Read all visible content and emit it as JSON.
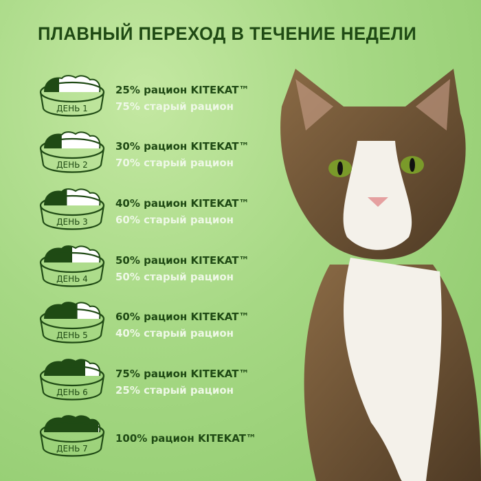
{
  "title": "ПЛАВНЫЙ ПЕРЕХОД В ТЕЧЕНИЕ НЕДЕЛИ",
  "colors": {
    "dark_green": "#1f4a14",
    "light_text": "#eef8e6",
    "background": "#a6d884"
  },
  "steps": [
    {
      "day": "ДЕНЬ 1",
      "new_share": 25,
      "line1": "25% рацион KITEKAT™",
      "line2": "75% старый рацион"
    },
    {
      "day": "ДЕНЬ 2",
      "new_share": 30,
      "line1": "30% рацион KITEKAT™",
      "line2": "70% старый рацион"
    },
    {
      "day": "ДЕНЬ 3",
      "new_share": 40,
      "line1": "40% рацион KITEKAT™",
      "line2": "60% старый рацион"
    },
    {
      "day": "ДЕНЬ 4",
      "new_share": 50,
      "line1": "50% рацион KITEKAT™",
      "line2": "50% старый рацион"
    },
    {
      "day": "ДЕНЬ 5",
      "new_share": 60,
      "line1": "60% рацион KITEKAT™",
      "line2": "40% старый рацион"
    },
    {
      "day": "ДЕНЬ 6",
      "new_share": 75,
      "line1": "75% рацион KITEKAT™",
      "line2": "25% старый рацион"
    },
    {
      "day": "ДЕНЬ 7",
      "new_share": 100,
      "line1": "100% рацион KITEKAT™",
      "line2": ""
    }
  ]
}
